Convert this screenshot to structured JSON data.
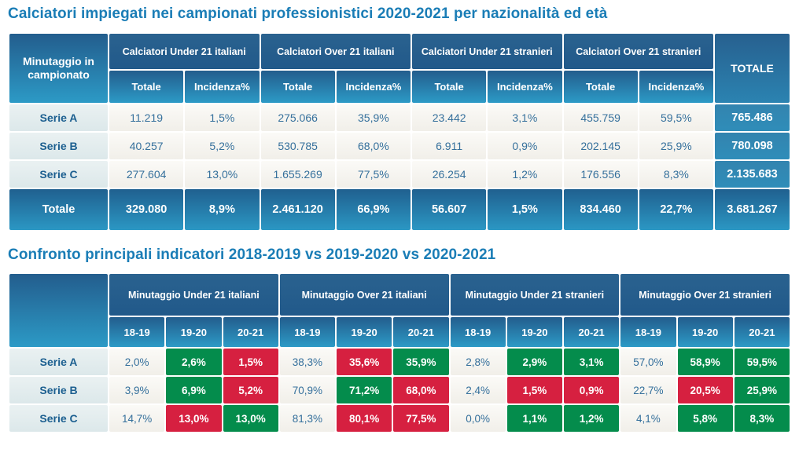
{
  "colors": {
    "title_blue": "#1a7db6",
    "header_navy": "#235d8e",
    "header_gradient_bottom": "#2c9ac6",
    "total_column_blue": "#2f8db9",
    "row_label_bg": "#e3edee",
    "plain_cell_bg": "#f6f4f0",
    "data_text_blue": "#35709c",
    "highlight_green": "#048c4c",
    "highlight_red": "#d62040"
  },
  "chart_data": [
    {
      "type": "table",
      "title": "Calciatori impiegati nei campionati professionistici 2020-2021 per nazionalità ed età",
      "corner_header": "Minutaggio in campionato",
      "column_groups": [
        "Calciatori Under 21 italiani",
        "Calciatori Over 21 italiani",
        "Calciatori Under 21 stranieri",
        "Calciatori Over 21 stranieri"
      ],
      "sub_columns": [
        "Totale",
        "Incidenza%"
      ],
      "total_column": "TOTALE",
      "rows": [
        {
          "label": "Serie A",
          "values": [
            "11.219",
            "1,5%",
            "275.066",
            "35,9%",
            "23.442",
            "3,1%",
            "455.759",
            "59,5%"
          ],
          "total": "765.486"
        },
        {
          "label": "Serie B",
          "values": [
            "40.257",
            "5,2%",
            "530.785",
            "68,0%",
            "6.911",
            "0,9%",
            "202.145",
            "25,9%"
          ],
          "total": "780.098"
        },
        {
          "label": "Serie C",
          "values": [
            "277.604",
            "13,0%",
            "1.655.269",
            "77,5%",
            "26.254",
            "1,2%",
            "176.556",
            "8,3%"
          ],
          "total": "2.135.683"
        }
      ],
      "total_row": {
        "label": "Totale",
        "values": [
          "329.080",
          "8,9%",
          "2.461.120",
          "66,9%",
          "56.607",
          "1,5%",
          "834.460",
          "22,7%"
        ],
        "total": "3.681.267"
      }
    },
    {
      "type": "table",
      "title": "Confronto principali indicatori 2018-2019 vs 2019-2020 vs 2020-2021",
      "corner_header": "",
      "column_groups": [
        "Minutaggio Under 21 italiani",
        "Minutaggio Over 21 italiani",
        "Minutaggio Under 21 stranieri",
        "Minutaggio Over 21 stranieri"
      ],
      "sub_columns": [
        "18-19",
        "19-20",
        "20-21"
      ],
      "rows": [
        {
          "label": "Serie A",
          "cells": [
            {
              "value": "2,0%",
              "highlight": "plain"
            },
            {
              "value": "2,6%",
              "highlight": "green"
            },
            {
              "value": "1,5%",
              "highlight": "red"
            },
            {
              "value": "38,3%",
              "highlight": "plain"
            },
            {
              "value": "35,6%",
              "highlight": "red"
            },
            {
              "value": "35,9%",
              "highlight": "green"
            },
            {
              "value": "2,8%",
              "highlight": "plain"
            },
            {
              "value": "2,9%",
              "highlight": "green"
            },
            {
              "value": "3,1%",
              "highlight": "green"
            },
            {
              "value": "57,0%",
              "highlight": "plain"
            },
            {
              "value": "58,9%",
              "highlight": "green"
            },
            {
              "value": "59,5%",
              "highlight": "green"
            }
          ]
        },
        {
          "label": "Serie B",
          "cells": [
            {
              "value": "3,9%",
              "highlight": "plain"
            },
            {
              "value": "6,9%",
              "highlight": "green"
            },
            {
              "value": "5,2%",
              "highlight": "red"
            },
            {
              "value": "70,9%",
              "highlight": "plain"
            },
            {
              "value": "71,2%",
              "highlight": "green"
            },
            {
              "value": "68,0%",
              "highlight": "red"
            },
            {
              "value": "2,4%",
              "highlight": "plain"
            },
            {
              "value": "1,5%",
              "highlight": "red"
            },
            {
              "value": "0,9%",
              "highlight": "red"
            },
            {
              "value": "22,7%",
              "highlight": "plain"
            },
            {
              "value": "20,5%",
              "highlight": "red"
            },
            {
              "value": "25,9%",
              "highlight": "green"
            }
          ]
        },
        {
          "label": "Serie C",
          "cells": [
            {
              "value": "14,7%",
              "highlight": "plain"
            },
            {
              "value": "13,0%",
              "highlight": "red"
            },
            {
              "value": "13,0%",
              "highlight": "green"
            },
            {
              "value": "81,3%",
              "highlight": "plain"
            },
            {
              "value": "80,1%",
              "highlight": "red"
            },
            {
              "value": "77,5%",
              "highlight": "red"
            },
            {
              "value": "0,0%",
              "highlight": "plain"
            },
            {
              "value": "1,1%",
              "highlight": "green"
            },
            {
              "value": "1,2%",
              "highlight": "green"
            },
            {
              "value": "4,1%",
              "highlight": "plain"
            },
            {
              "value": "5,8%",
              "highlight": "green"
            },
            {
              "value": "8,3%",
              "highlight": "green"
            }
          ]
        }
      ]
    }
  ]
}
